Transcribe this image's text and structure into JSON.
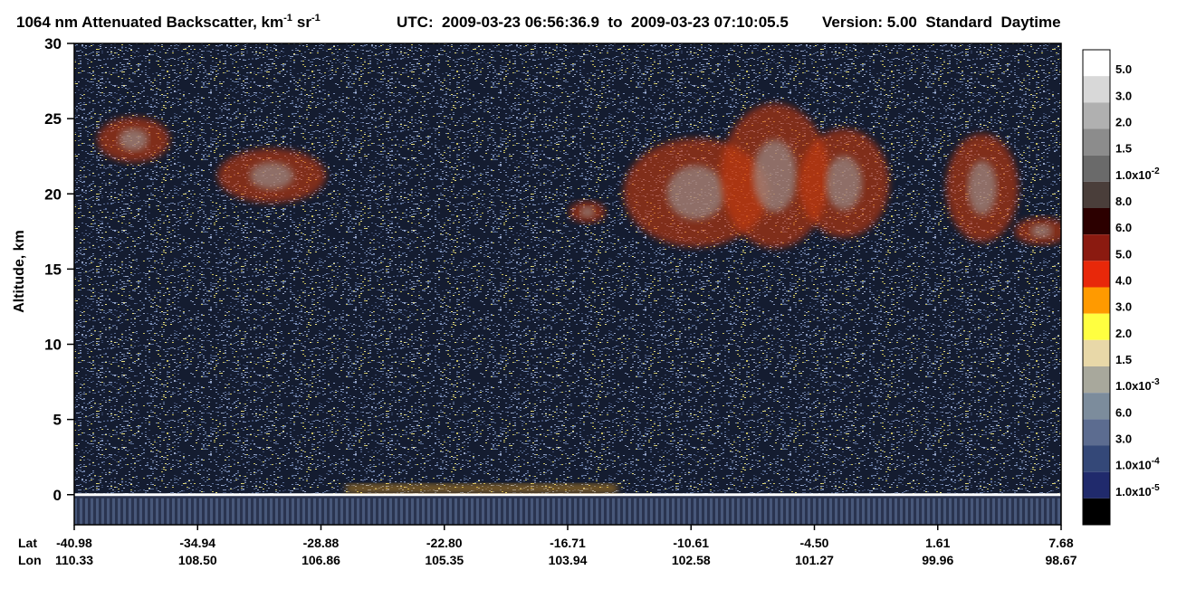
{
  "chart_data": {
    "type": "heatmap",
    "title_parts": [
      "1064 nm Attenuated Backscatter, km",
      "-1",
      "sr",
      "-1"
    ],
    "utc": "UTC:  2009-03-23 06:56:36.9  to  2009-03-23 07:10:05.5",
    "version": "Version: 5.00  Standard  Daytime",
    "ylabel": "Altitude, km",
    "ylim": [
      -2,
      30
    ],
    "yticks": [
      0,
      5,
      10,
      15,
      20,
      25,
      30
    ],
    "x_rows": [
      {
        "name": "Lat",
        "ticks": [
          -40.98,
          -34.94,
          -28.88,
          {
            "value": -22.8,
            "label": "-22.80"
          },
          -16.71,
          -10.61,
          {
            "value": -4.5,
            "label": "-4.50"
          },
          1.61,
          7.68
        ]
      },
      {
        "name": "Lon",
        "ticks": [
          110.33,
          {
            "value": 108.5,
            "label": "108.50"
          },
          106.86,
          105.35,
          103.94,
          102.58,
          101.27,
          99.96,
          98.67
        ]
      }
    ],
    "colorbar": {
      "colors": [
        "#ffffff",
        "#d8d8d8",
        "#b0b0b0",
        "#8c8c8c",
        "#6a6a6a",
        "#4a3e3a",
        "#2c0000",
        "#8b1a10",
        "#e8280a",
        "#ff9a00",
        "#ffff40",
        "#e8d8a8",
        "#a8a89c",
        "#7c8c9c",
        "#5c6c90",
        "#344878",
        "#202a6c",
        "#000000"
      ],
      "labels": [
        "5.0",
        "3.0",
        "2.0",
        "1.5",
        {
          "text": "1.0x10",
          "sup": "-2"
        },
        "8.0",
        "6.0",
        "5.0",
        "4.0",
        "3.0",
        "2.0",
        "1.5",
        {
          "text": "1.0x10",
          "sup": "-3"
        },
        "6.0",
        "3.0",
        {
          "text": "1.0x10",
          "sup": "-4"
        },
        {
          "text": "1.0x10",
          "sup": "-5"
        }
      ]
    }
  }
}
